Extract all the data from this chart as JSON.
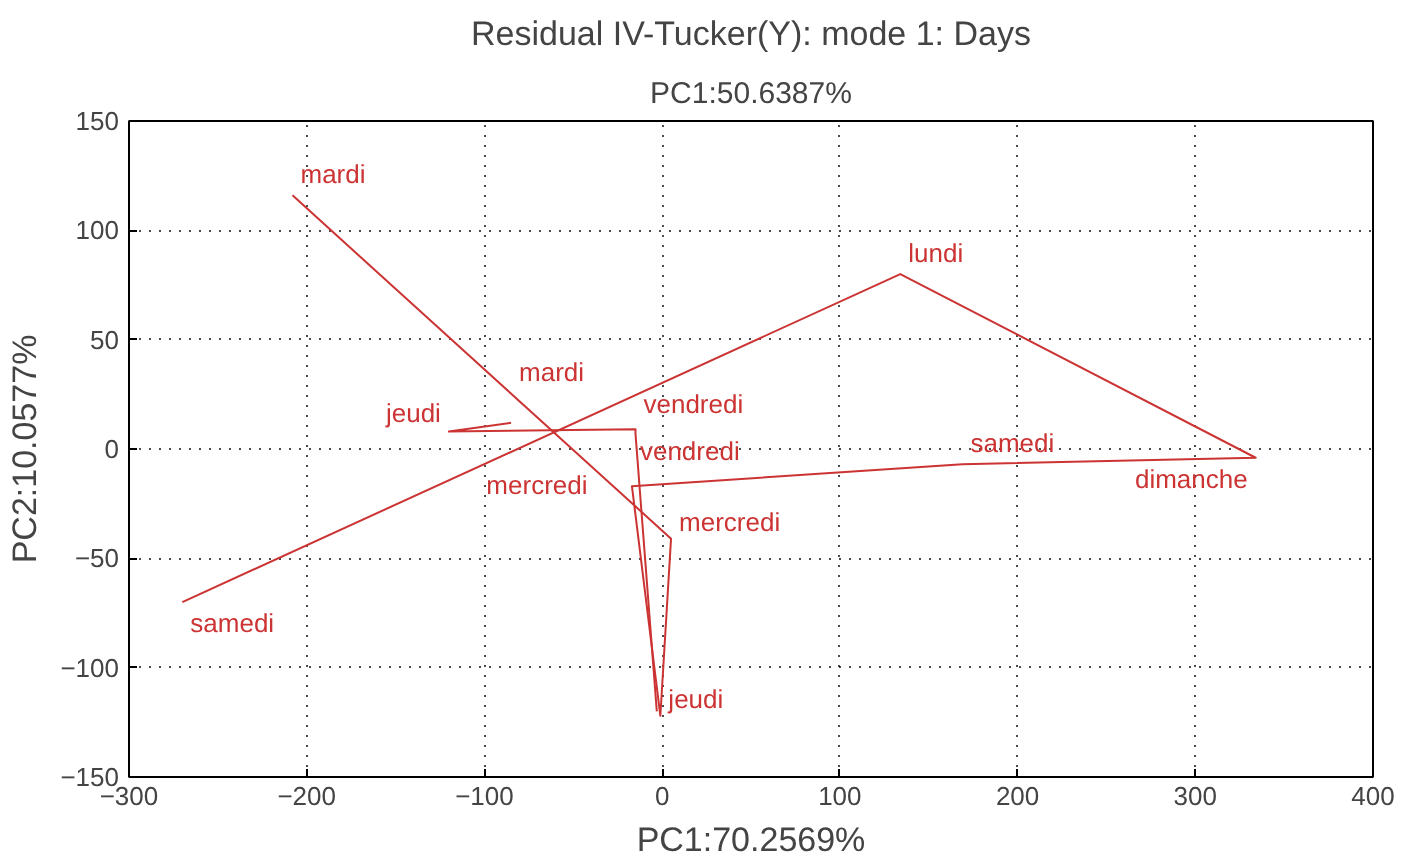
{
  "chart_data": {
    "type": "line",
    "title": "Residual IV-Tucker(Y): mode 1: Days",
    "subtitle": "PC1:50.6387%",
    "xlabel": "PC1:70.2569%",
    "ylabel": "PC2:10.0577%",
    "xlim": [
      -300,
      400
    ],
    "ylim": [
      -150,
      150
    ],
    "xticks": [
      -300,
      -200,
      -100,
      0,
      100,
      200,
      300,
      400
    ],
    "yticks": [
      -150,
      -100,
      -50,
      0,
      50,
      100,
      150
    ],
    "grid": true,
    "marker": "none",
    "line_style": "solid",
    "series": [
      {
        "color": "#cc3333",
        "x": [
          -208,
          5,
          -1,
          -17,
          169,
          334,
          134,
          -270
        ],
        "values": [
          116,
          -41,
          -122,
          -17,
          -7,
          -4,
          80,
          -70
        ]
      },
      {
        "color": "#cc3333",
        "x": [
          -85,
          -120,
          -15,
          -15,
          -3
        ],
        "values": [
          12,
          8,
          9,
          7,
          -120
        ]
      }
    ],
    "annotations": [
      {
        "text": "mardi",
        "x": -208,
        "y": 116
      },
      {
        "text": "lundi",
        "x": 134,
        "y": 80
      },
      {
        "text": "dimanche",
        "x": 334,
        "y": -4
      },
      {
        "text": "samedi",
        "x": 169,
        "y": -7
      },
      {
        "text": "vendredi",
        "x": -17,
        "y": -17
      },
      {
        "text": "mercredi",
        "x": 5,
        "y": -43
      },
      {
        "text": "jeudi",
        "x": -1,
        "y": -124
      },
      {
        "text": "samedi",
        "x": -270,
        "y": -70
      },
      {
        "text": "jeudi",
        "x": -120,
        "y": 7
      },
      {
        "text": "mardi",
        "x": -85,
        "y": 12
      },
      {
        "text": "vendredi",
        "x": -15,
        "y": 11
      },
      {
        "text": "mercredi",
        "x": -15,
        "y": 7
      }
    ]
  }
}
